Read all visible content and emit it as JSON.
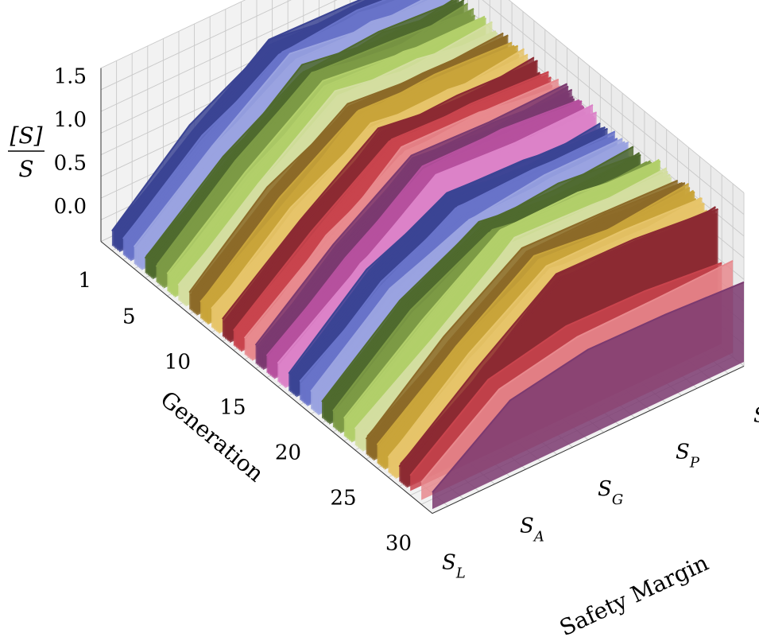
{
  "chart_data": {
    "type": "3d-line",
    "title": "",
    "xlabel": "Generation",
    "ylabel": "Safety Margin",
    "zlabel": {
      "numerator": "[S]",
      "denominator": "S"
    },
    "x_ticks": [
      1,
      5,
      10,
      15,
      20,
      25,
      30
    ],
    "y_ticks": [
      {
        "base": "S",
        "sub": "L"
      },
      {
        "base": "S",
        "sub": "A"
      },
      {
        "base": "S",
        "sub": "G"
      },
      {
        "base": "S",
        "sub": "P"
      },
      {
        "base": "S",
        "sub": "F"
      }
    ],
    "z_ticks": [
      "0.0",
      "0.5",
      "1.0",
      "1.5"
    ],
    "xlim": [
      0,
      30
    ],
    "ylim": [
      0,
      4
    ],
    "zlim": [
      -0.4,
      1.6
    ],
    "grid": true,
    "legend": "none",
    "series_colors": [
      "#3b4494",
      "#6873c9",
      "#9aa3e0",
      "#4f6a2e",
      "#7c9a45",
      "#b2cf6a",
      "#d3dea0",
      "#8c6a28",
      "#c9a43a",
      "#e6c46a",
      "#8c2a33",
      "#c9444d",
      "#e88a8e",
      "#7b3a70",
      "#b6509e",
      "#dc82c8"
    ],
    "profile": {
      "y": [
        0,
        1,
        2,
        3,
        4
      ],
      "z": [
        -0.15,
        0.55,
        1.15,
        1.12,
        1.1
      ]
    }
  }
}
